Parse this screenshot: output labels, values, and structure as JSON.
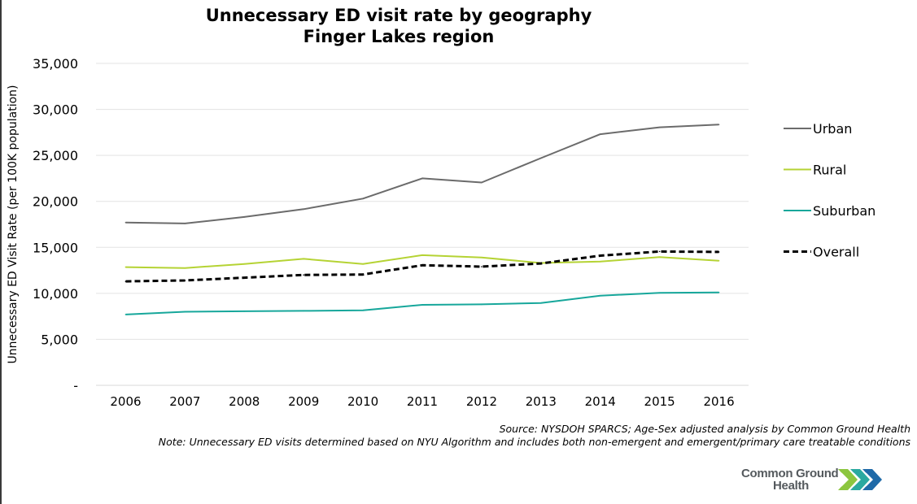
{
  "chart_data": {
    "type": "line",
    "title": "Unnecessary ED visit rate by geography",
    "subtitle": "Finger Lakes region",
    "ylabel": "Unnecessary ED Visit Rate (per 100K population)",
    "xlabel": "",
    "ylim": [
      0,
      35000
    ],
    "yticks": [
      {
        "value": 0,
        "label": "-"
      },
      {
        "value": 5000,
        "label": "5,000"
      },
      {
        "value": 10000,
        "label": "10,000"
      },
      {
        "value": 15000,
        "label": "15,000"
      },
      {
        "value": 20000,
        "label": "20,000"
      },
      {
        "value": 25000,
        "label": "25,000"
      },
      {
        "value": 30000,
        "label": "30,000"
      },
      {
        "value": 35000,
        "label": "35,000"
      }
    ],
    "grid": "horizontal",
    "legend_position": "right",
    "categories": [
      "2006",
      "2007",
      "2008",
      "2009",
      "2010",
      "2011",
      "2012",
      "2013",
      "2014",
      "2015",
      "2016"
    ],
    "series": [
      {
        "name": "Urban",
        "color": "#6b6b6b",
        "dash": "solid",
        "values": [
          17700,
          17600,
          18300,
          19150,
          20300,
          22500,
          22050,
          24700,
          27300,
          28050,
          28350
        ]
      },
      {
        "name": "Rural",
        "color": "#b5d334",
        "dash": "solid",
        "values": [
          12850,
          12750,
          13200,
          13750,
          13200,
          14150,
          13900,
          13300,
          13450,
          13950,
          13550
        ]
      },
      {
        "name": "Suburban",
        "color": "#17a79b",
        "dash": "solid",
        "values": [
          7700,
          8000,
          8050,
          8100,
          8150,
          8750,
          8800,
          8950,
          9750,
          10050,
          10100
        ]
      },
      {
        "name": "Overall",
        "color": "#000000",
        "dash": "dashed",
        "values": [
          11300,
          11400,
          11700,
          12000,
          12050,
          13050,
          12900,
          13250,
          14100,
          14550,
          14500
        ]
      }
    ]
  },
  "footer": {
    "source": "Source: NYSDOH SPARCS; Age-Sex adjusted analysis by Common Ground Health",
    "note": "Note: Unnecessary ED visits determined based on NYU Algorithm and includes both non-emergent and emergent/primary care treatable conditions"
  },
  "logo": {
    "line1": "Common Ground",
    "line2": "Health",
    "chevron_colors": [
      "#8cc63f",
      "#2aa9a0",
      "#1f6aa8"
    ]
  }
}
